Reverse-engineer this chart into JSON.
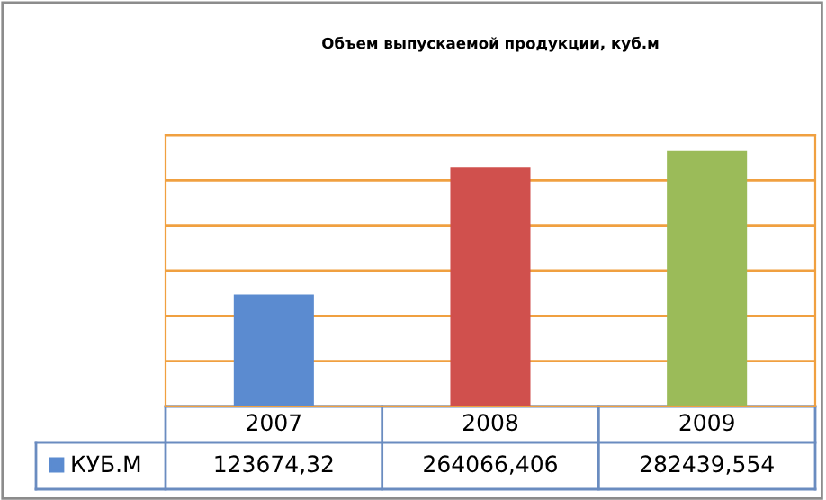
{
  "chart_data": {
    "type": "bar",
    "title": "Объем выпускаемой продукции, куб.м",
    "categories": [
      "2007",
      "2008",
      "2009"
    ],
    "series": [
      {
        "name": "КУБ.М",
        "color": "#5b8bd0",
        "colors": [
          "#5b8bd0",
          "#d0504d",
          "#9bbb59"
        ],
        "values": [
          123674.32,
          264066.406,
          282439.554
        ],
        "value_labels": [
          "123674,32",
          "264066,406",
          "282439,554"
        ]
      }
    ],
    "ylim": [
      0,
      300000
    ],
    "yticks": [
      {
        "value": 0,
        "label": null
      },
      {
        "value": 50000,
        "label": null
      },
      {
        "value": 100000,
        "label": null
      },
      {
        "value": 150000,
        "label": null
      },
      {
        "value": 200000,
        "label": null
      },
      {
        "value": 250000,
        "label": null
      },
      {
        "value": 300000,
        "label": null
      }
    ],
    "grid": "y",
    "legend": "bottom"
  }
}
